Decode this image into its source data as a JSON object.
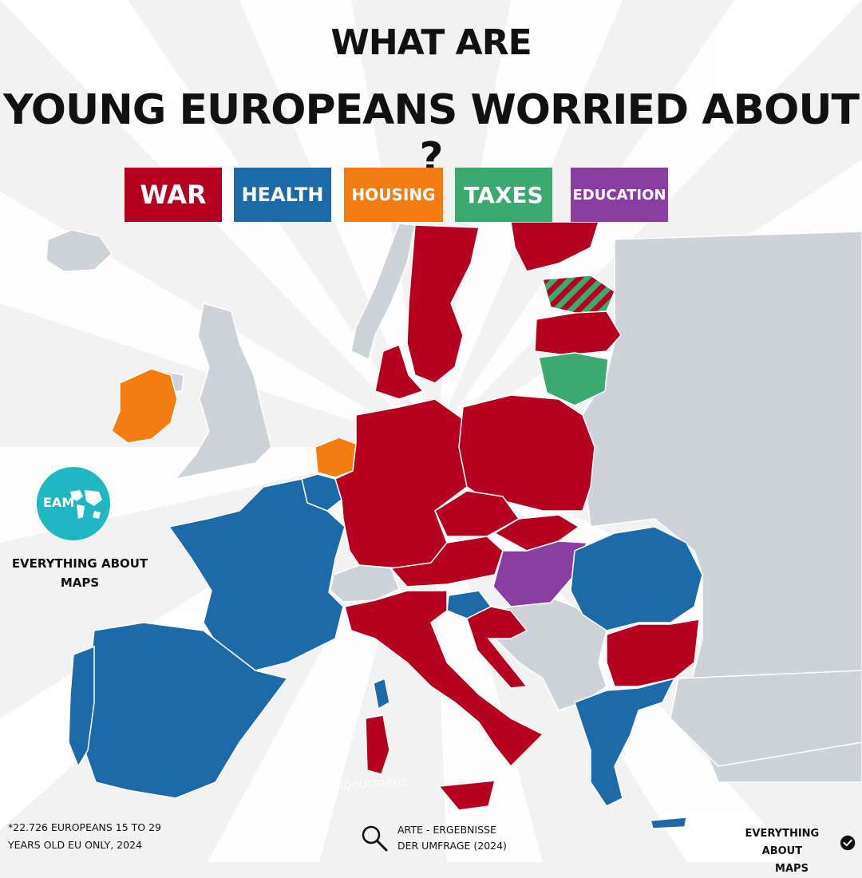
{
  "title": {
    "line1": "WHAT ARE",
    "line2": "YOUNG EUROPEANS WORRIED ABOUT ?"
  },
  "legend": [
    {
      "label": "WAR",
      "color": "#b5001f"
    },
    {
      "label": "HEALTH",
      "color": "#1d6aa8"
    },
    {
      "label": "HOUSING",
      "color": "#f57c10"
    },
    {
      "label": "TAXES",
      "color": "#3aaa6e"
    },
    {
      "label": "EDUCATION",
      "color": "#8a3fa0"
    }
  ],
  "countries": [
    {
      "name": "Ireland",
      "category": "HOUSING"
    },
    {
      "name": "Netherlands",
      "category": "HOUSING"
    },
    {
      "name": "France",
      "category": "HEALTH"
    },
    {
      "name": "Spain",
      "category": "HEALTH"
    },
    {
      "name": "Portugal",
      "category": "HEALTH"
    },
    {
      "name": "Belgium",
      "category": "HEALTH"
    },
    {
      "name": "Luxembourg",
      "category": "HEALTH"
    },
    {
      "name": "Romania",
      "category": "HEALTH"
    },
    {
      "name": "Greece",
      "category": "HEALTH"
    },
    {
      "name": "Slovenia",
      "category": "HEALTH"
    },
    {
      "name": "Cyprus",
      "category": "HEALTH"
    },
    {
      "name": "Sweden",
      "category": "WAR"
    },
    {
      "name": "Finland",
      "category": "WAR"
    },
    {
      "name": "Denmark",
      "category": "WAR"
    },
    {
      "name": "Germany",
      "category": "WAR"
    },
    {
      "name": "Poland",
      "category": "WAR"
    },
    {
      "name": "Czechia",
      "category": "WAR"
    },
    {
      "name": "Slovakia",
      "category": "WAR"
    },
    {
      "name": "Austria",
      "category": "WAR"
    },
    {
      "name": "Italy",
      "category": "WAR"
    },
    {
      "name": "Croatia",
      "category": "WAR"
    },
    {
      "name": "Bulgaria",
      "category": "WAR"
    },
    {
      "name": "Latvia",
      "category": "WAR"
    },
    {
      "name": "Lithuania",
      "category": "TAXES"
    },
    {
      "name": "Hungary",
      "category": "EDUCATION"
    },
    {
      "name": "Estonia",
      "category": "WAR / TAXES"
    }
  ],
  "colors": {
    "non_eu": "#cdd3d8",
    "sea": "#f2f2f2",
    "logo": "#1fb8c2"
  },
  "logo": {
    "text": "EAM"
  },
  "brand_left": {
    "line1": "EVERYTHING ABOUT",
    "line2": "MAPS"
  },
  "watermark": "@everythingaboutmaps",
  "footnote": {
    "line1": "*22.726 EUROPEANS 15 TO 29",
    "line2": "YEARS OLD EU ONLY, 2024"
  },
  "source": {
    "line1": "ARTE - ERGEBNISSE",
    "line2": "DER UMFRAGE (2024)"
  },
  "brand_right": {
    "line1": "EVERYTHING ABOUT",
    "line2": "MAPS"
  }
}
